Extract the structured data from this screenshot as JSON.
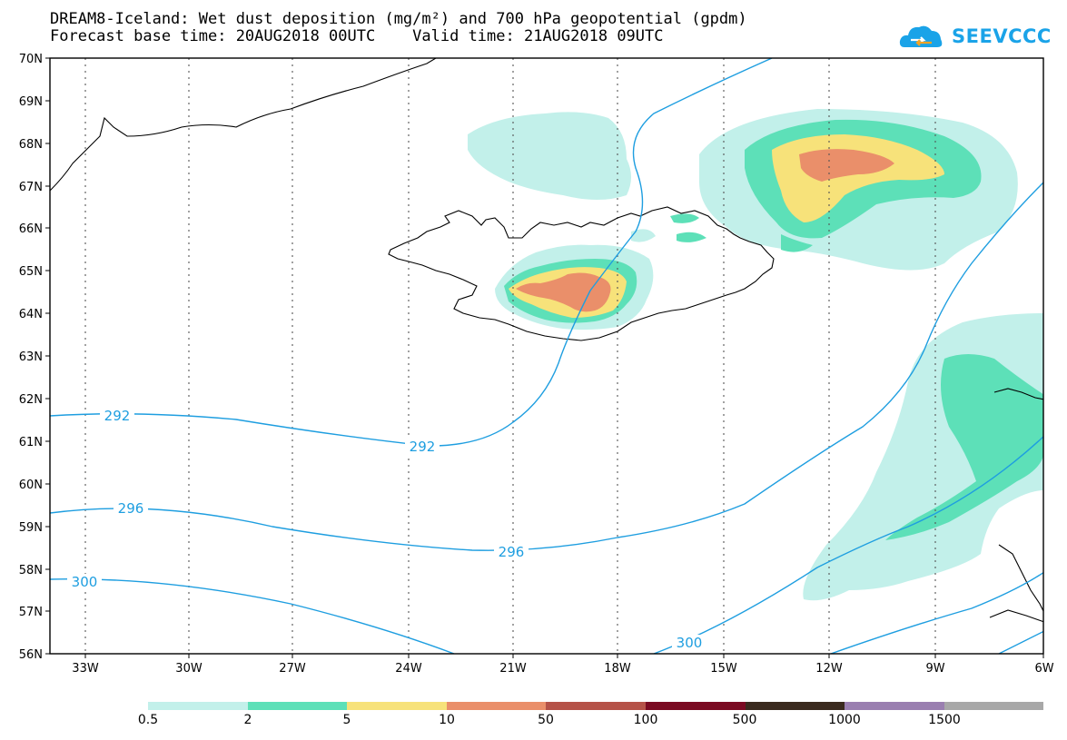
{
  "title": {
    "line1": "DREAM8-Iceland: Wet dust deposition (mg/m²) and 700 hPa geopotential (gpdm)",
    "line2": "Forecast base time: 20AUG2018 00UTC    Valid time: 21AUG2018 09UTC"
  },
  "logo": {
    "text": "SEEVCCC",
    "icon": "cloud-icon",
    "color": "#1aa3e8"
  },
  "map": {
    "lat_labels": [
      "70N",
      "69N",
      "68N",
      "67N",
      "66N",
      "65N",
      "64N",
      "63N",
      "62N",
      "61N",
      "60N",
      "59N",
      "58N",
      "57N",
      "56N"
    ],
    "lon_labels": [
      "33W",
      "30W",
      "27W",
      "24W",
      "21W",
      "18W",
      "15W",
      "12W",
      "9W",
      "6W"
    ],
    "contour_labels": [
      "292",
      "292",
      "296",
      "296",
      "300",
      "300"
    ],
    "contour_color": "#1e9ee0"
  },
  "legend": {
    "colors": [
      "#c2f0ea",
      "#5de0b8",
      "#f7e27a",
      "#ea8f6a",
      "#b55248",
      "#7a0a22",
      "#3a2a1e",
      "#9a7fb0",
      "#a8a8a8"
    ],
    "labels": [
      "0.5",
      "2",
      "5",
      "10",
      "50",
      "100",
      "500",
      "1000",
      "1500"
    ]
  }
}
